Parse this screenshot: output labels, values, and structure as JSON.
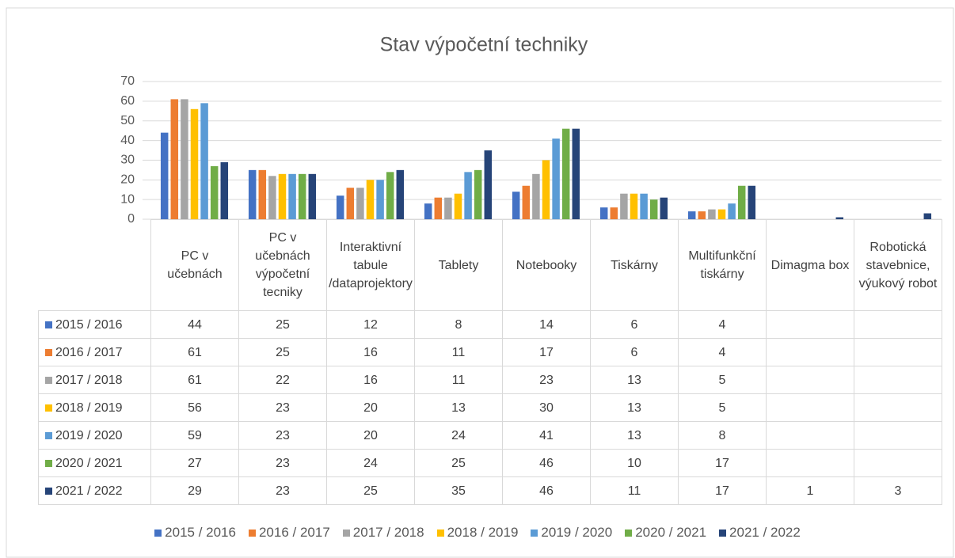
{
  "chart_data": {
    "type": "bar",
    "title": "Stav výpočetní techniky",
    "categories": [
      "PC v učebnách",
      "PC v učebnách výpočetní tecniky",
      "Interaktivní tabule /dataprojektory",
      "Tablety",
      "Notebooky",
      "Tiskárny",
      "Multifunkční tiskárny",
      "Dimagma box",
      "Robotická stavebnice, výukový robot"
    ],
    "series": [
      {
        "name": "2015 / 2016",
        "color": "#4472c4",
        "values": [
          44,
          25,
          12,
          8,
          14,
          6,
          4,
          null,
          null
        ]
      },
      {
        "name": "2016 / 2017",
        "color": "#ed7d31",
        "values": [
          61,
          25,
          16,
          11,
          17,
          6,
          4,
          null,
          null
        ]
      },
      {
        "name": "2017 / 2018",
        "color": "#a5a5a5",
        "values": [
          61,
          22,
          16,
          11,
          23,
          13,
          5,
          null,
          null
        ]
      },
      {
        "name": "2018 / 2019",
        "color": "#ffc000",
        "values": [
          56,
          23,
          20,
          13,
          30,
          13,
          5,
          null,
          null
        ]
      },
      {
        "name": "2019 / 2020",
        "color": "#5b9bd5",
        "values": [
          59,
          23,
          20,
          24,
          41,
          13,
          8,
          null,
          null
        ]
      },
      {
        "name": "2020 / 2021",
        "color": "#70ad47",
        "values": [
          27,
          23,
          24,
          25,
          46,
          10,
          17,
          null,
          null
        ]
      },
      {
        "name": "2021 / 2022",
        "color": "#264478",
        "values": [
          29,
          23,
          25,
          35,
          46,
          11,
          17,
          1,
          3
        ]
      }
    ],
    "ylim": [
      0,
      70
    ],
    "yticks": [
      0,
      10,
      20,
      30,
      40,
      50,
      60,
      70
    ],
    "grid": true,
    "legend": "bottom",
    "data_table": true
  }
}
